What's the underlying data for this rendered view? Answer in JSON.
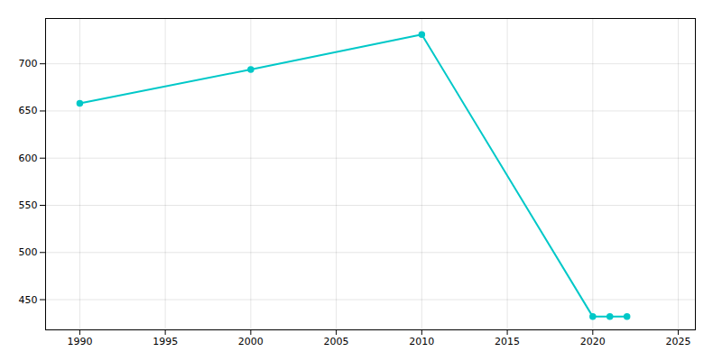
{
  "chart_data": {
    "type": "line",
    "x": [
      1990,
      2000,
      2010,
      2020,
      2021,
      2022
    ],
    "values": [
      658,
      694,
      731,
      432,
      432,
      432
    ],
    "color": "#00C8C8",
    "marker": "o",
    "xlim": [
      1988,
      2026
    ],
    "ylim": [
      418,
      748
    ],
    "xticks": [
      1990,
      1995,
      2000,
      2005,
      2010,
      2015,
      2020,
      2025
    ],
    "yticks": [
      450,
      500,
      550,
      600,
      650,
      700
    ],
    "grid": true
  }
}
